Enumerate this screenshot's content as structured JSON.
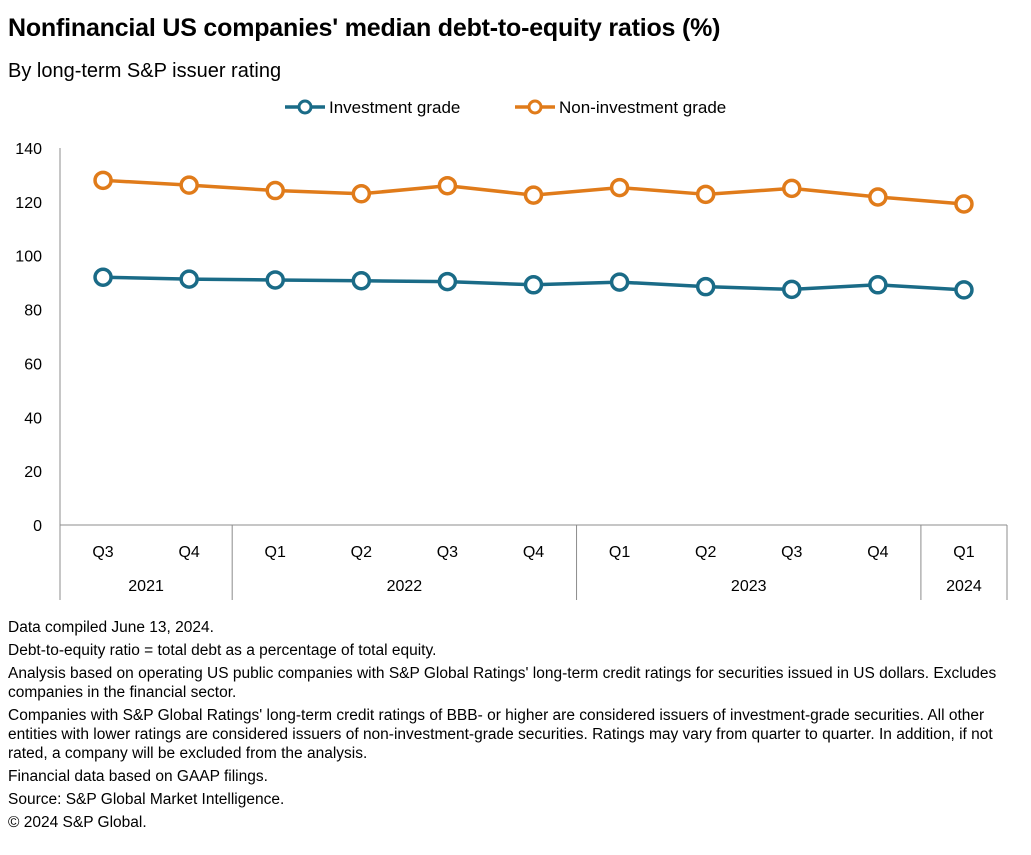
{
  "title": "Nonfinancial US companies' median debt-to-equity ratios (%)",
  "subtitle": "By long-term S&P issuer rating",
  "chart_data": {
    "type": "line",
    "categories": [
      "Q3",
      "Q4",
      "Q1",
      "Q2",
      "Q3",
      "Q4",
      "Q1",
      "Q2",
      "Q3",
      "Q4",
      "Q1"
    ],
    "groups": [
      {
        "label": "2021",
        "count": 2
      },
      {
        "label": "2022",
        "count": 4
      },
      {
        "label": "2023",
        "count": 4
      },
      {
        "label": "2024",
        "count": 1
      }
    ],
    "series": [
      {
        "name": "Investment grade",
        "color": "#1a6b87",
        "values": [
          92,
          91.3,
          91,
          90.7,
          90.4,
          89.2,
          90.2,
          88.5,
          87.5,
          89.2,
          87.3
        ]
      },
      {
        "name": "Non-investment grade",
        "color": "#e07b1a",
        "values": [
          128,
          126.2,
          124.2,
          123,
          126,
          122.5,
          125.3,
          122.8,
          125,
          121.8,
          119.2
        ]
      }
    ],
    "ylim": [
      0,
      140
    ],
    "yticks": [
      0,
      20,
      40,
      60,
      80,
      100,
      120,
      140
    ],
    "grid": false,
    "legend_position": "top"
  },
  "notes": [
    "Data compiled June 13, 2024.",
    "Debt-to-equity ratio = total debt as a percentage of total equity.",
    "Analysis based on operating US public companies with S&P Global Ratings' long-term credit ratings for securities issued in US dollars. Excludes companies in the financial sector.",
    "Companies with S&P Global Ratings' long-term credit ratings of BBB- or higher are considered issuers of investment-grade securities. All other entities with lower ratings are considered issuers of non-investment-grade securities. Ratings may vary from quarter to quarter. In addition, if not rated, a company will be excluded from the analysis.",
    "Financial data based on GAAP filings.",
    "Source: S&P Global Market Intelligence.",
    "© 2024 S&P Global."
  ]
}
